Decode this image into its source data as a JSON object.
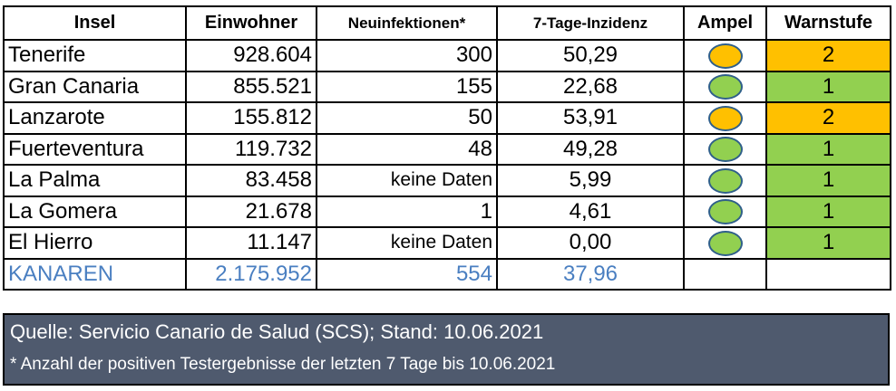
{
  "headers": {
    "insel": "Insel",
    "einwohner": "Einwohner",
    "neuinfektionen": "Neuinfektionen*",
    "inzidenz": "7-Tage-Inzidenz",
    "ampel": "Ampel",
    "warnstufe": "Warnstufe"
  },
  "colors": {
    "orange": "#ffc000",
    "green": "#92d050",
    "total_text": "#4a7fc1",
    "footer_bg": "#4f5a6e"
  },
  "rows": [
    {
      "insel": "Tenerife",
      "einwohner": "928.604",
      "neuinfektionen": "300",
      "inzidenz": "50,29",
      "ampel": "orange",
      "warnstufe": "2"
    },
    {
      "insel": "Gran Canaria",
      "einwohner": "855.521",
      "neuinfektionen": "155",
      "inzidenz": "22,68",
      "ampel": "green",
      "warnstufe": "1"
    },
    {
      "insel": "Lanzarote",
      "einwohner": "155.812",
      "neuinfektionen": "50",
      "inzidenz": "53,91",
      "ampel": "orange",
      "warnstufe": "2"
    },
    {
      "insel": "Fuerteventura",
      "einwohner": "119.732",
      "neuinfektionen": "48",
      "inzidenz": "49,28",
      "ampel": "green",
      "warnstufe": "1"
    },
    {
      "insel": "La Palma",
      "einwohner": "83.458",
      "neuinfektionen": "keine Daten",
      "inzidenz": "5,99",
      "ampel": "green",
      "warnstufe": "1"
    },
    {
      "insel": "La Gomera",
      "einwohner": "21.678",
      "neuinfektionen": "1",
      "inzidenz": "4,61",
      "ampel": "green",
      "warnstufe": "1"
    },
    {
      "insel": "El Hierro",
      "einwohner": "11.147",
      "neuinfektionen": "keine Daten",
      "inzidenz": "0,00",
      "ampel": "green",
      "warnstufe": "1"
    }
  ],
  "total": {
    "insel": "KANAREN",
    "einwohner": "2.175.952",
    "neuinfektionen": "554",
    "inzidenz": "37,96"
  },
  "footer": {
    "source": "Quelle: Servicio Canario de Salud (SCS); Stand: 10.06.2021",
    "note": "* Anzahl der positiven Testergebnisse der letzten 7 Tage bis 10.06.2021"
  }
}
